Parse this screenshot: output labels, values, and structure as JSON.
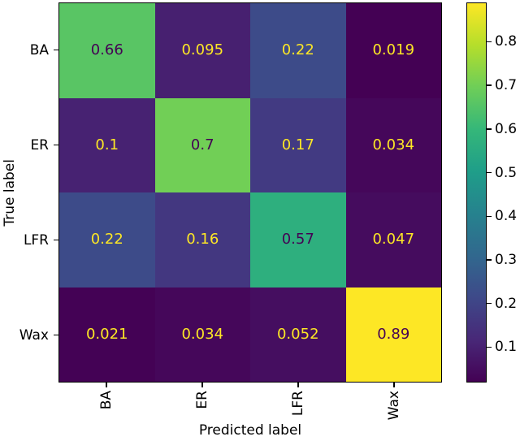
{
  "chart_data": {
    "type": "heatmap",
    "title": "",
    "xlabel": "Predicted label",
    "ylabel": "True label",
    "x_categories": [
      "BA",
      "ER",
      "LFR",
      "Wax"
    ],
    "y_categories": [
      "BA",
      "ER",
      "LFR",
      "Wax"
    ],
    "values": [
      [
        0.66,
        0.095,
        0.22,
        0.019
      ],
      [
        0.1,
        0.7,
        0.17,
        0.034
      ],
      [
        0.22,
        0.16,
        0.57,
        0.047
      ],
      [
        0.021,
        0.034,
        0.052,
        0.89
      ]
    ],
    "cell_labels": [
      [
        "0.66",
        "0.095",
        "0.22",
        "0.019"
      ],
      [
        "0.1",
        "0.7",
        "0.17",
        "0.034"
      ],
      [
        "0.22",
        "0.16",
        "0.57",
        "0.047"
      ],
      [
        "0.021",
        "0.034",
        "0.052",
        "0.89"
      ]
    ],
    "vmin": 0.019,
    "vmax": 0.89,
    "colormap": "viridis",
    "grid": false,
    "legend": false,
    "colorbar": {
      "position": "right",
      "tick_values": [
        0.8,
        0.7,
        0.6,
        0.5,
        0.4,
        0.3,
        0.2,
        0.1
      ],
      "tick_labels": [
        "0.8",
        "0.7",
        "0.6",
        "0.5",
        "0.4",
        "0.3",
        "0.2",
        "0.1"
      ]
    }
  },
  "colors": {
    "viridis_stops": [
      "#440154",
      "#482878",
      "#3e4989",
      "#31688e",
      "#26828e",
      "#1f9e89",
      "#35b779",
      "#6ece58",
      "#b5de2b",
      "#fde725"
    ],
    "annotation_dark": "#440154",
    "annotation_light": "#fde725",
    "frame": "#000000",
    "background": "#ffffff"
  }
}
